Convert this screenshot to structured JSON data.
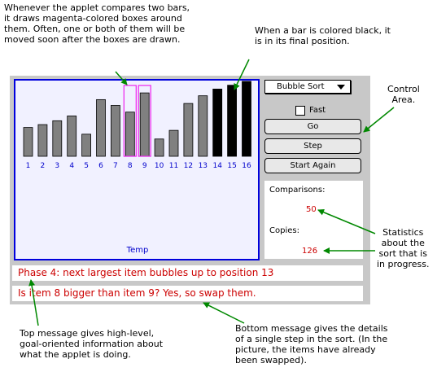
{
  "annotations": {
    "compare_note": "Whenever the applet compares two bars,\nit draws magenta-colored boxes around\nthem.  Often, one or both of them will be\nmoved soon after the boxes are drawn.",
    "black_note": "When a bar is colored black, it\nis in its final position.",
    "control_note": "Control\nArea.",
    "stats_note": "Statistics\nabout the\nsort that is\nin progress.",
    "top_msg_note": "Top message gives high-level,\ngoal-oriented information about\nwhat the applet is doing.",
    "bottom_msg_note": "Bottom message gives the details\nof a single step in the sort.  (In the\npicture, the items have already\nbeen swapped)."
  },
  "applet": {
    "algorithm_select": "Bubble Sort",
    "fast_label": "Fast",
    "fast_checked": false,
    "buttons": {
      "go": "Go",
      "step": "Step",
      "start_again": "Start Again"
    },
    "canvas_label": "Temp",
    "bars": [
      {
        "index": "1",
        "value": 30,
        "state": "normal"
      },
      {
        "index": "2",
        "value": 33,
        "state": "normal"
      },
      {
        "index": "3",
        "value": 37,
        "state": "normal"
      },
      {
        "index": "4",
        "value": 42,
        "state": "normal"
      },
      {
        "index": "5",
        "value": 23,
        "state": "normal"
      },
      {
        "index": "6",
        "value": 59,
        "state": "normal"
      },
      {
        "index": "7",
        "value": 53,
        "state": "normal"
      },
      {
        "index": "8",
        "value": 46,
        "state": "compared"
      },
      {
        "index": "9",
        "value": 66,
        "state": "compared"
      },
      {
        "index": "10",
        "value": 18,
        "state": "normal"
      },
      {
        "index": "11",
        "value": 27,
        "state": "normal"
      },
      {
        "index": "12",
        "value": 55,
        "state": "normal"
      },
      {
        "index": "13",
        "value": 63,
        "state": "normal"
      },
      {
        "index": "14",
        "value": 70,
        "state": "final"
      },
      {
        "index": "15",
        "value": 74,
        "state": "final"
      },
      {
        "index": "16",
        "value": 78,
        "state": "final"
      }
    ],
    "stats": {
      "comparisons_label": "Comparisons:",
      "comparisons": "50",
      "copies_label": "Copies:",
      "copies": "126"
    },
    "top_message": "Phase 4:  next largest item bubbles up to position 13",
    "bottom_message": "Is item 8 bigger than item 9?  Yes, so swap them.",
    "colors": {
      "bar_normal": "#808080",
      "bar_final": "#000000",
      "compare_box": "#ee22ee",
      "index_text": "#0000cc",
      "canvas_border": "#0000dd",
      "message_text": "#cc0000"
    }
  }
}
